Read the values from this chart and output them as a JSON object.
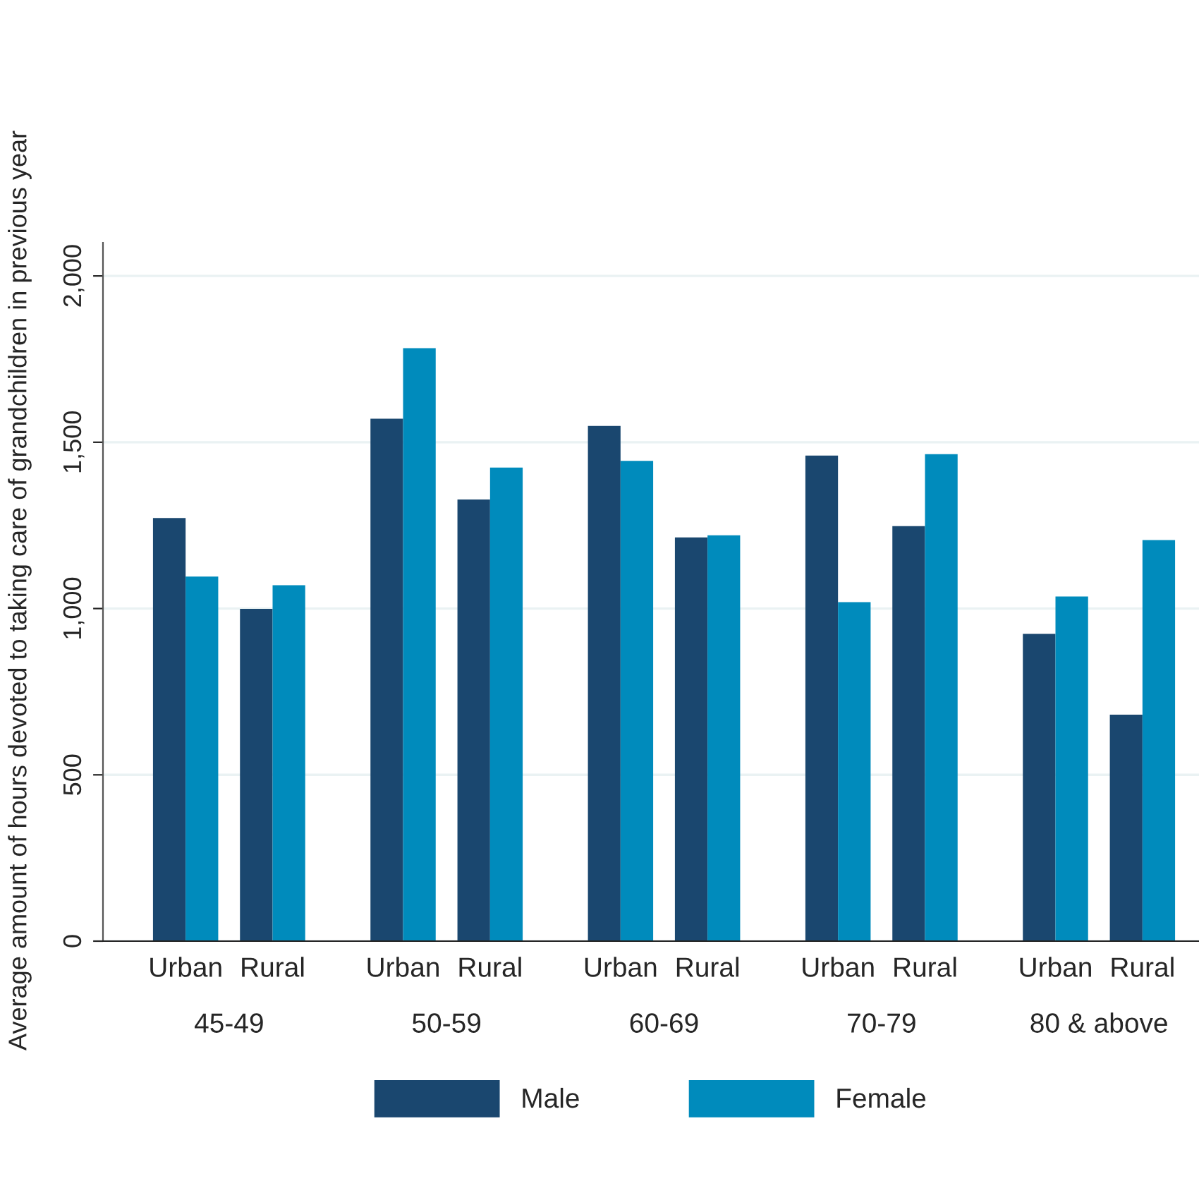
{
  "chart_data": {
    "type": "bar",
    "ylabel": "Average amount of hours devoted to taking care of grandchildren in previous year",
    "categories": [
      "Urban",
      "Rural",
      "Urban",
      "Rural",
      "Urban",
      "Rural",
      "Urban",
      "Rural",
      "Urban",
      "Rural"
    ],
    "annotations": [
      "45-49",
      "50-59",
      "60-69",
      "70-79",
      "80 & above"
    ],
    "series": [
      {
        "name": "Male",
        "color": "#1a476f",
        "values": [
          1272,
          999,
          1571,
          1328,
          1549,
          1214,
          1460,
          1248,
          924,
          681
        ]
      },
      {
        "name": "Female",
        "color": "#008bbc",
        "values": [
          1096,
          1070,
          1783,
          1424,
          1444,
          1220,
          1019,
          1464,
          1036,
          1206
        ]
      }
    ],
    "ylim": [
      0,
      2100
    ],
    "yticks": [
      0,
      {
        "value": 500,
        "label": "500"
      },
      {
        "value": 1000,
        "label": "1,000"
      },
      {
        "value": 1500,
        "label": "1,500"
      },
      {
        "value": 2000,
        "label": "2,000"
      }
    ],
    "grid": "y",
    "legend": "bottom"
  }
}
